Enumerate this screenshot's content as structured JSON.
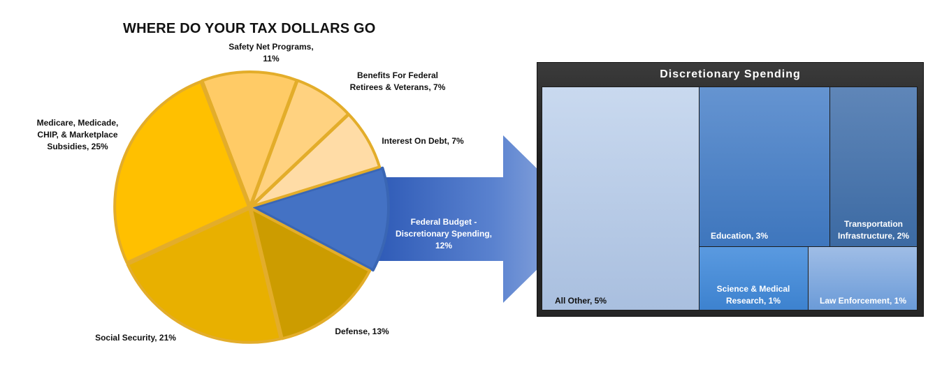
{
  "title": "WHERE DO YOUR TAX DOLLARS GO",
  "colors": {
    "discretionary_blue": "#4472C4",
    "gold_dark": "#C89A00",
    "gold": "#FFC000",
    "gold_light": "#FFD36B",
    "gold_pale": "#FFE0A6"
  },
  "chart_data": [
    {
      "type": "pie",
      "title": "WHERE DO YOUR TAX DOLLARS GO",
      "slices": [
        {
          "label": "Federal Budget - Discretionary Spending, 12%",
          "value": 12,
          "color": "#4472C4"
        },
        {
          "label": "Defense, 13%",
          "value": 13,
          "color": "#CC9C00"
        },
        {
          "label": "Social Security, 21%",
          "value": 21,
          "color": "#E8B000"
        },
        {
          "label": "Medicare, Medicade, CHIP, & Marketplace Subsidies, 25%",
          "value": 25,
          "color": "#FFC000"
        },
        {
          "label": "Safety Net Programs, 11%",
          "value": 11,
          "color": "#FFCB66"
        },
        {
          "label": "Benefits For Federal Retirees & Veterans, 7%",
          "value": 7,
          "color": "#FFD280"
        },
        {
          "label": "Interest On Debt, 7%",
          "value": 7,
          "color": "#FFDCA6"
        }
      ]
    },
    {
      "type": "treemap",
      "title": "Discretionary Spending",
      "items": [
        {
          "label": "All Other, 5%",
          "value": 5
        },
        {
          "label": "Education, 3%",
          "value": 3
        },
        {
          "label": "Transportation Infrastructure, 2%",
          "value": 2
        },
        {
          "label": "Science & Medical Research, 1%",
          "value": 1
        },
        {
          "label": "Law Enforcement, 1%",
          "value": 1
        }
      ]
    }
  ],
  "pie_labels": {
    "safety_net": "Safety Net Programs,\n11%",
    "benefits": "Benefits For Federal\nRetirees & Veterans, 7%",
    "interest": "Interest On Debt, 7%",
    "medicare": "Medicare, Medicade,\nCHIP, & Marketplace\nSubsidies, 25%",
    "social_security": "Social Security, 21%",
    "defense": "Defense, 13%",
    "discretionary": "Federal Budget -\nDiscretionary Spending,\n12%"
  },
  "treemap_labels": {
    "title": "Discretionary Spending",
    "all_other": "All Other, 5%",
    "education": "Education, 3%",
    "transportation": "Transportation\nInfrastructure, 2%",
    "science": "Science & Medical\nResearch, 1%",
    "law": "Law Enforcement, 1%"
  }
}
